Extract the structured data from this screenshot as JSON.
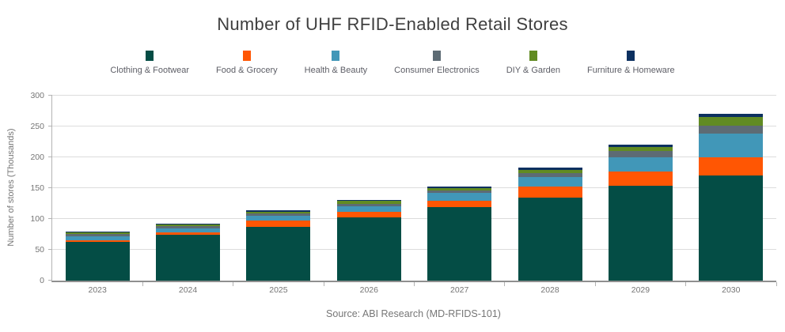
{
  "title": "Number of UHF RFID-Enabled Retail Stores",
  "source_note": "Source: ABI Research (MD-RFIDS-101)",
  "y_axis_title": "Number of stores (Thousands)",
  "colors": {
    "background": "#ffffff",
    "gridline": "#dcdcdc",
    "axis_line": "#8f8f8f",
    "title_text": "#3f3f3f",
    "tick_text": "#757575",
    "legend_text": "#5d5e66"
  },
  "chart_data": {
    "type": "bar",
    "stacked": true,
    "title": "Number of UHF RFID-Enabled Retail Stores",
    "xlabel": "",
    "ylabel": "Number of stores (Thousands)",
    "ylim": [
      0,
      300
    ],
    "yticks": [
      0,
      50,
      100,
      150,
      200,
      250,
      300
    ],
    "grid": true,
    "legend_position": "top",
    "categories": [
      "2023",
      "2024",
      "2025",
      "2026",
      "2027",
      "2028",
      "2029",
      "2030"
    ],
    "series": [
      {
        "name": "Clothing & Footwear",
        "color": "#044d45",
        "values": [
          63,
          75,
          87,
          102,
          119,
          134,
          154,
          170
        ]
      },
      {
        "name": "Food & Grocery",
        "color": "#ff5603",
        "values": [
          2,
          3,
          10,
          10,
          11,
          19,
          23,
          30
        ]
      },
      {
        "name": "Health & Beauty",
        "color": "#4197b8",
        "values": [
          7,
          7,
          8,
          8,
          12,
          15,
          23,
          38
        ]
      },
      {
        "name": "Consumer Electronics",
        "color": "#5d6b74",
        "values": [
          4,
          4,
          4,
          4,
          4,
          6,
          10,
          13
        ]
      },
      {
        "name": "DIY & Garden",
        "color": "#618b22",
        "values": [
          2,
          2,
          3,
          5,
          4,
          6,
          7,
          15
        ]
      },
      {
        "name": "Furniture & Homeware",
        "color": "#0c3060",
        "values": [
          2,
          2,
          2,
          2,
          2,
          3,
          3,
          4
        ]
      }
    ]
  }
}
